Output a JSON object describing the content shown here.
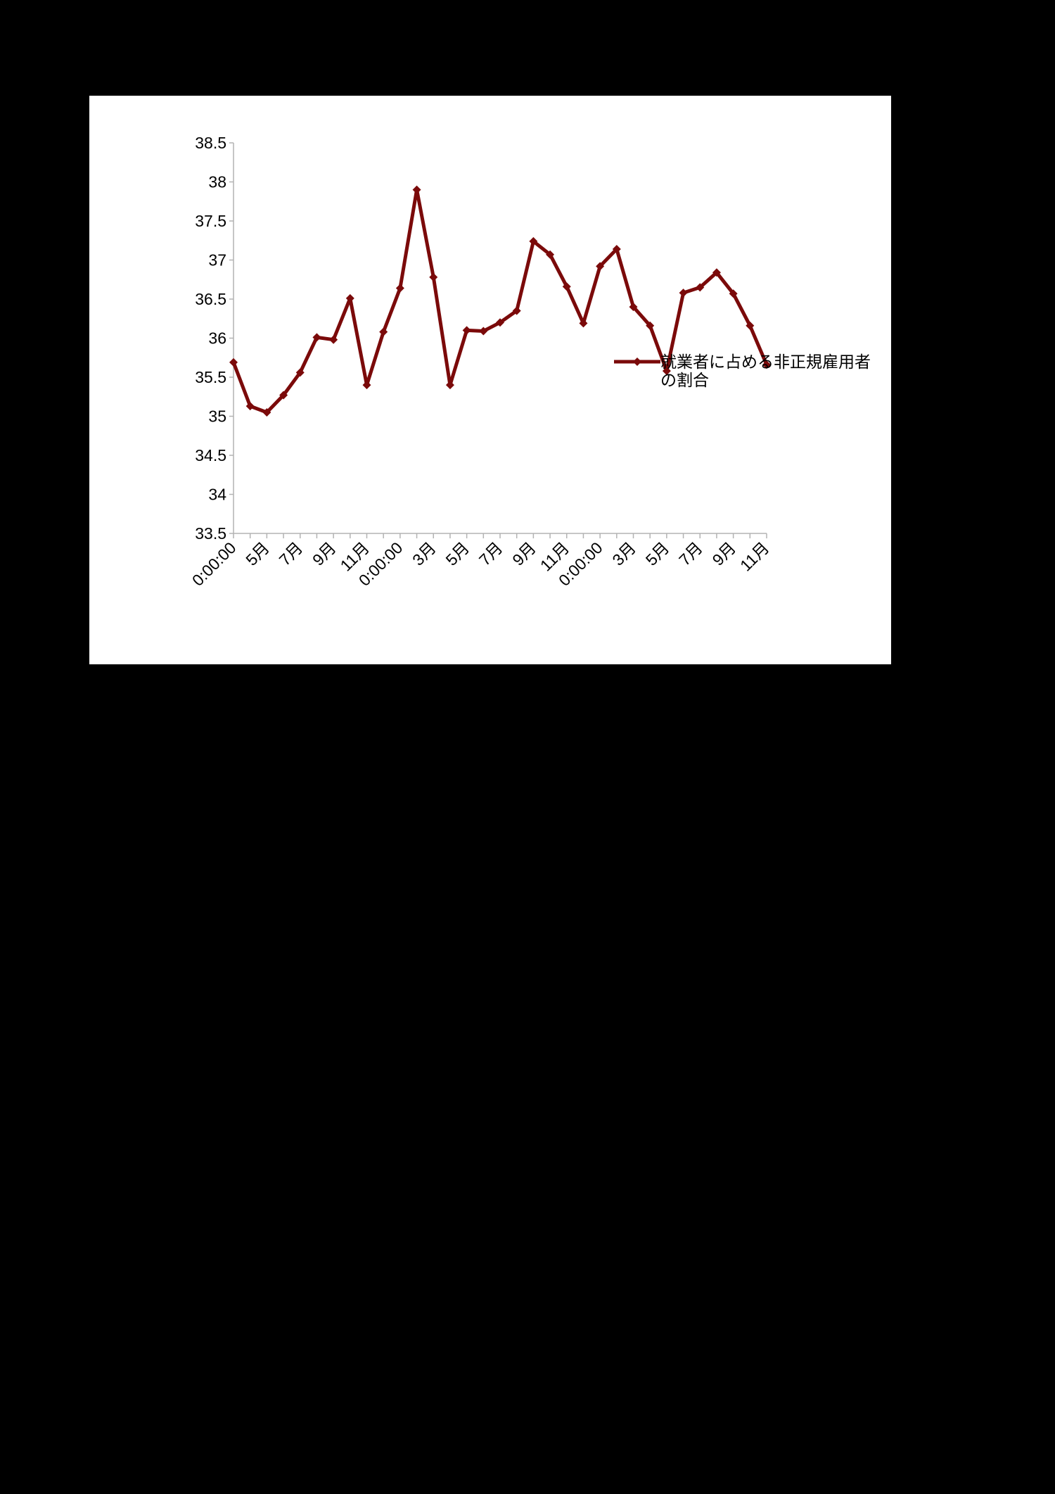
{
  "chart_data": {
    "type": "line",
    "title": "",
    "xlabel": "",
    "ylabel": "",
    "ylim": [
      33.5,
      38.5
    ],
    "yticks": [
      "33.5",
      "34",
      "34.5",
      "35",
      "35.5",
      "36",
      "36.5",
      "37",
      "37.5",
      "38",
      "38.5"
    ],
    "x": [
      "0:00:00",
      "",
      "5月",
      "",
      "7月",
      "",
      "9月",
      "",
      "11月",
      "",
      "0:00:00",
      "",
      "3月",
      "",
      "5月",
      "",
      "7月",
      "",
      "9月",
      "",
      "11月",
      "",
      "0:00:00",
      "",
      "3月",
      "",
      "5月",
      "",
      "7月",
      "",
      "9月",
      "",
      "11月"
    ],
    "series": [
      {
        "name": "就業者に占める非正規雇用者の割合",
        "color": "#7b0a0a",
        "marker": "diamond",
        "values": [
          35.69,
          35.13,
          35.05,
          35.27,
          35.56,
          36.01,
          35.98,
          36.51,
          35.4,
          36.08,
          36.64,
          37.9,
          36.78,
          35.4,
          36.1,
          36.09,
          36.2,
          36.35,
          37.24,
          37.07,
          36.66,
          36.19,
          36.92,
          37.14,
          36.4,
          36.16,
          35.58,
          36.58,
          36.65,
          36.84,
          36.57,
          36.16,
          35.66
        ]
      }
    ],
    "legend": {
      "position": "right",
      "lines": [
        "就業者に占める非正規雇用者",
        "の割合"
      ]
    },
    "grid": false
  }
}
